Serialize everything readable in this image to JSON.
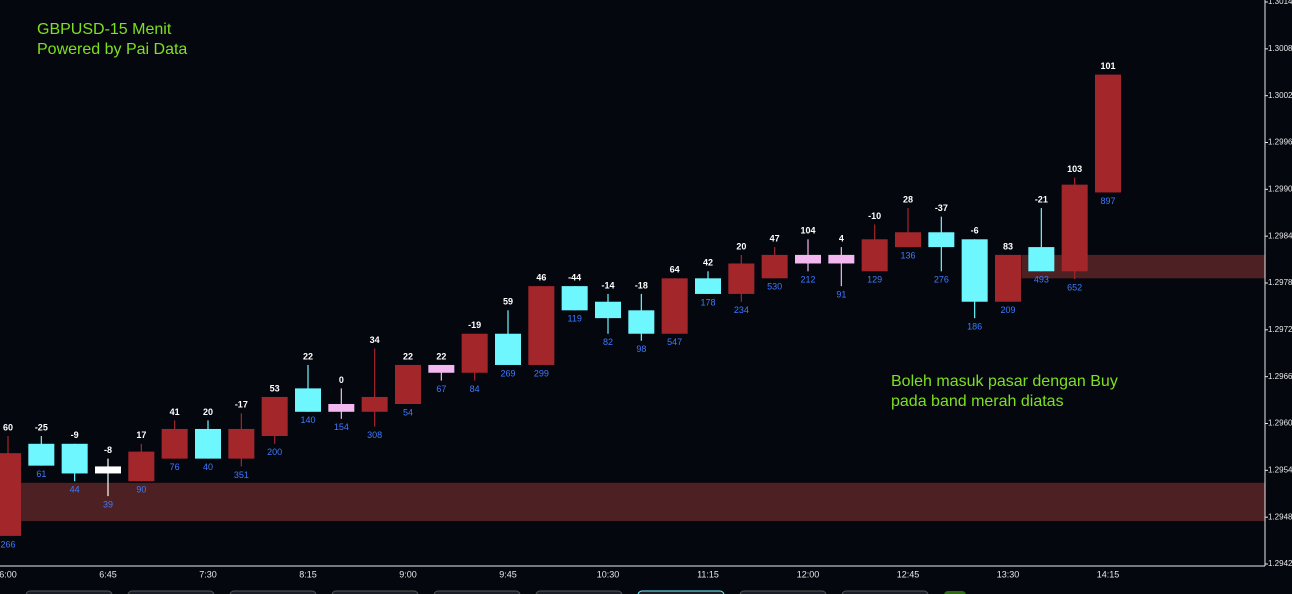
{
  "chart_data": {
    "type": "candlestick",
    "title": "GBPUSD-15 Menit",
    "subtitle": "Powered by Pai Data",
    "annotations": [
      "Boleh masuk pasar dengan Buy",
      "pada band merah diatas"
    ],
    "categories": [
      "6:00",
      null,
      null,
      "6:45",
      null,
      null,
      "7:30",
      null,
      null,
      "8:15",
      null,
      null,
      "9:00",
      null,
      null,
      "9:45",
      null,
      null,
      "10:30",
      null,
      null,
      "11:15",
      null,
      null,
      "12:00",
      null,
      null,
      "12:45",
      null,
      null,
      "13:30",
      null,
      null,
      "14:15"
    ],
    "open": [
      1.29456,
      1.29574,
      1.29574,
      1.29536,
      1.29526,
      1.29555,
      1.29593,
      1.29555,
      1.29584,
      1.29645,
      1.29615,
      1.29615,
      1.29625,
      1.29665,
      1.29665,
      1.29715,
      1.29675,
      1.29776,
      1.29756,
      1.29745,
      1.29715,
      1.29786,
      1.29766,
      1.29786,
      1.29805,
      1.29805,
      1.29795,
      1.29826,
      1.29845,
      1.29836,
      1.29756,
      1.29826,
      1.29795,
      1.29896
    ],
    "high": [
      1.29584,
      1.29584,
      1.29574,
      1.29555,
      1.29574,
      1.29604,
      1.29604,
      1.29613,
      1.29634,
      1.29675,
      1.29645,
      1.29696,
      1.29675,
      1.29675,
      1.29715,
      1.29745,
      1.29776,
      1.29776,
      1.29766,
      1.29766,
      1.29786,
      1.29795,
      1.29816,
      1.29826,
      1.29836,
      1.29826,
      1.29855,
      1.29876,
      1.29865,
      1.29836,
      1.29816,
      1.29876,
      1.29915,
      1.30047
    ],
    "low": [
      1.29456,
      1.29546,
      1.29526,
      1.29507,
      1.29526,
      1.29555,
      1.29555,
      1.29545,
      1.29574,
      1.29615,
      1.29606,
      1.29596,
      1.29625,
      1.29655,
      1.29655,
      1.29675,
      1.29675,
      1.29745,
      1.29715,
      1.29706,
      1.29715,
      1.29766,
      1.29756,
      1.29786,
      1.29795,
      1.29776,
      1.29795,
      1.29826,
      1.29795,
      1.29735,
      1.29756,
      1.29795,
      1.29785,
      1.29896
    ],
    "close": [
      1.29562,
      1.29546,
      1.29536,
      1.29545,
      1.29564,
      1.29593,
      1.29555,
      1.29593,
      1.29634,
      1.29615,
      1.29625,
      1.29634,
      1.29675,
      1.29675,
      1.29715,
      1.29675,
      1.29776,
      1.29745,
      1.29735,
      1.29715,
      1.29786,
      1.29766,
      1.29805,
      1.29816,
      1.29816,
      1.29816,
      1.29836,
      1.29845,
      1.29826,
      1.29756,
      1.29816,
      1.29795,
      1.29906,
      1.30047
    ],
    "colors": [
      "#a3262b",
      "#6ff7ff",
      "#6ff7ff",
      "#ffffff",
      "#a3262b",
      "#a3262b",
      "#6ff7ff",
      "#a3262b",
      "#a3262b",
      "#6ff7ff",
      "#f4b8f0",
      "#a3262b",
      "#a3262b",
      "#f4b8f0",
      "#a3262b",
      "#6ff7ff",
      "#a3262b",
      "#6ff7ff",
      "#6ff7ff",
      "#6ff7ff",
      "#a3262b",
      "#6ff7ff",
      "#a3262b",
      "#a3262b",
      "#f4b8f0",
      "#f4b8f0",
      "#a3262b",
      "#a3262b",
      "#6ff7ff",
      "#6ff7ff",
      "#a3262b",
      "#6ff7ff",
      "#a3262b",
      "#a3262b"
    ],
    "delta": [
      60,
      -25,
      -9,
      -8,
      17,
      41,
      20,
      -17,
      53,
      22,
      0,
      34,
      22,
      22,
      -19,
      59,
      46,
      -44,
      -14,
      -18,
      64,
      42,
      20,
      47,
      104,
      4,
      -10,
      28,
      -37,
      -6,
      83,
      -21,
      103,
      101
    ],
    "volume": [
      266,
      61,
      44,
      39,
      90,
      76,
      40,
      351,
      200,
      140,
      154,
      308,
      54,
      67,
      84,
      269,
      299,
      119,
      82,
      98,
      547,
      178,
      234,
      530,
      212,
      91,
      129,
      136,
      276,
      186,
      209,
      493,
      652,
      897
    ],
    "zones": [
      {
        "low": 1.29475,
        "high": 1.29524
      },
      {
        "low": 1.29786,
        "high": 1.29816
      }
    ],
    "zone_color": "#5a2628",
    "ylim": [
      1.2942,
      1.3014
    ],
    "yticks": [
      1.2942,
      1.2948,
      1.2954,
      {
        "value": 1.296,
        "label": "1.2960"
      },
      1.2966,
      1.2972,
      1.2978,
      1.2984,
      {
        "value": 1.299,
        "label": "1.2990"
      },
      1.2996,
      1.3002,
      1.3008,
      1.3014
    ]
  }
}
